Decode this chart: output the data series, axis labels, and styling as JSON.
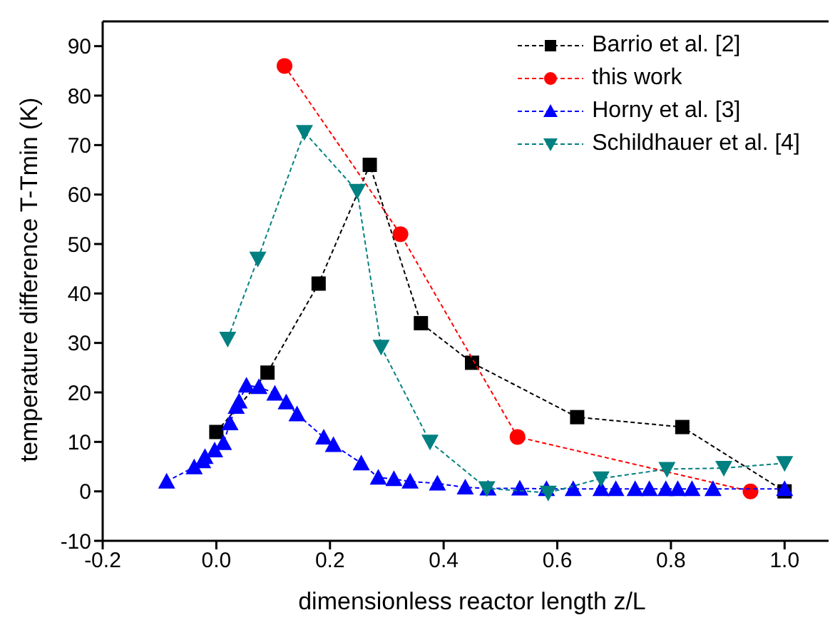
{
  "chart_data": {
    "type": "line",
    "xlabel": "dimensionless reactor length z/L",
    "ylabel": "temperature difference T-Tmin (K)",
    "xlim": [
      -0.2,
      1.1
    ],
    "ylim": [
      -10,
      95
    ],
    "xticks": [
      -0.2,
      {
        "value": 0,
        "label": "0.0"
      },
      0.2,
      0.4,
      0.6,
      0.8,
      {
        "value": 1,
        "label": "1.0"
      }
    ],
    "yticks": [
      -10,
      0,
      10,
      20,
      30,
      40,
      50,
      60,
      70,
      80,
      90
    ],
    "legend": "top right",
    "line_style": "dashed",
    "series": [
      {
        "name": "Barrio et al. [2]",
        "color": "#000000",
        "marker": "square",
        "x": [
          0.0,
          0.09,
          0.18,
          0.27,
          0.36,
          0.45,
          0.635,
          0.82,
          1.0
        ],
        "values": [
          12,
          24,
          42,
          66,
          34,
          26,
          15,
          13,
          0
        ]
      },
      {
        "name": "this work",
        "color": "#ff0000",
        "marker": "circle",
        "x": [
          0.12,
          0.324,
          0.53,
          0.94
        ],
        "values": [
          86,
          52,
          11,
          0
        ]
      },
      {
        "name": "Horny et al. [3]",
        "color": "#0000ff",
        "marker": "triangle",
        "x": [
          -0.0875,
          -0.039,
          -0.024,
          -0.02,
          -0.003,
          0.0125,
          0.024,
          0.035,
          0.04,
          0.053,
          0.075,
          0.103,
          0.123,
          0.142,
          0.189,
          0.206,
          0.255,
          0.285,
          0.3125,
          0.341,
          0.389,
          0.438,
          0.478,
          0.534,
          0.581,
          0.628,
          0.677,
          0.703,
          0.737,
          0.762,
          0.791,
          0.812,
          0.837,
          0.874,
          1.0
        ],
        "values": [
          2,
          4.9,
          6.1,
          7,
          8.3,
          9.8,
          13.8,
          17.1,
          18.2,
          21.4,
          21.1,
          19.8,
          18,
          15.6,
          10.9,
          9.4,
          5.7,
          2.8,
          2.5,
          2,
          1.6,
          0.8,
          0.6,
          0.6,
          0.5,
          0.5,
          0.5,
          0.5,
          0.5,
          0.5,
          0.5,
          0.5,
          0.5,
          0.5,
          0.5
        ]
      },
      {
        "name": "Schildhauer et al. [4]",
        "color": "#008080",
        "marker": "triangle-down",
        "x": [
          0.02,
          0.073,
          0.155,
          0.248,
          0.29,
          0.376,
          0.476,
          0.584,
          0.677,
          0.793,
          0.893,
          1.0
        ],
        "values": [
          30.8,
          47,
          72.6,
          60.7,
          29.2,
          10,
          0.6,
          -0.3,
          2.6,
          4.5,
          4.7,
          5.7
        ]
      }
    ]
  }
}
